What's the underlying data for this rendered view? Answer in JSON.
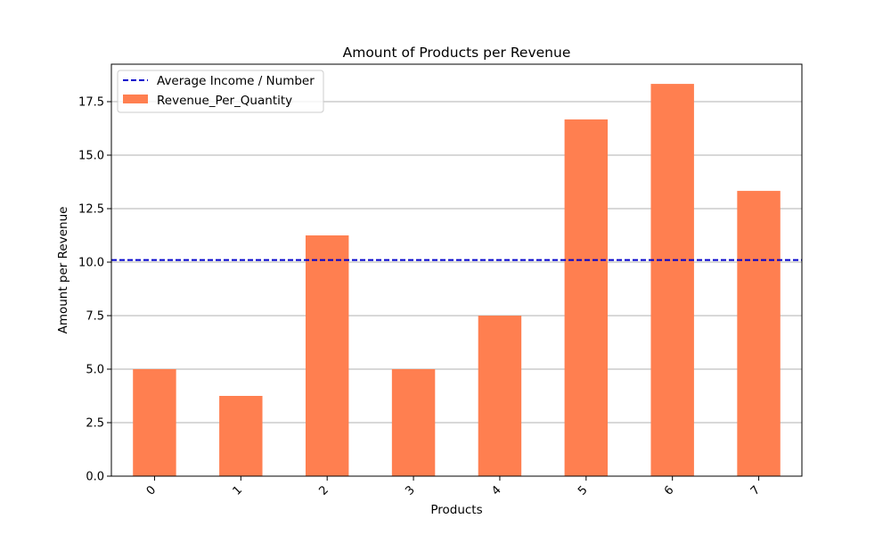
{
  "chart_data": {
    "type": "bar",
    "title": "Amount of Products per Revenue",
    "xlabel": "Products",
    "ylabel": "Amount per Revenue",
    "categories": [
      "0",
      "1",
      "2",
      "3",
      "4",
      "5",
      "6",
      "7"
    ],
    "series": [
      {
        "name": "Revenue_Per_Quantity",
        "values": [
          5.0,
          3.75,
          11.25,
          5.0,
          7.5,
          16.67,
          18.33,
          13.33
        ],
        "color": "#ff7f50"
      }
    ],
    "reference_line": {
      "name": "Average Income / Number",
      "value": 10.1,
      "style": "dashed",
      "color": "#0000cc"
    },
    "ylim": [
      0,
      19.25
    ],
    "yticks": [
      "0.0",
      "2.5",
      "5.0",
      "7.5",
      "10.0",
      "12.5",
      "15.0",
      "17.5"
    ],
    "grid": "horizontal",
    "legend_position": "top-left",
    "xtick_rotation": "45"
  }
}
